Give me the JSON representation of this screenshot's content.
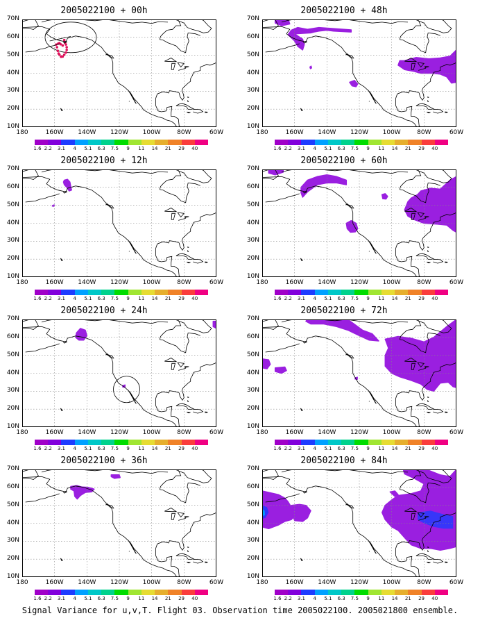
{
  "panels": [
    {
      "title": "2005022100 + 00h",
      "overlay": "obs00"
    },
    {
      "title": "2005022100 + 48h",
      "overlay": "p48"
    },
    {
      "title": "2005022100 + 12h",
      "overlay": "p12"
    },
    {
      "title": "2005022100 + 60h",
      "overlay": "p60"
    },
    {
      "title": "2005022100 + 24h",
      "overlay": "p24"
    },
    {
      "title": "2005022100 + 72h",
      "overlay": "p72"
    },
    {
      "title": "2005022100 + 36h",
      "overlay": "p36"
    },
    {
      "title": "2005022100 + 84h",
      "overlay": "p84"
    }
  ],
  "map": {
    "lat_labels": [
      "10N",
      "20N",
      "30N",
      "40N",
      "50N",
      "60N",
      "70N"
    ],
    "lon_labels": [
      "180",
      "160W",
      "140W",
      "120W",
      "100W",
      "80W",
      "60W"
    ]
  },
  "colorbar": {
    "labels": [
      "1.6",
      "2.2",
      "3.1",
      "4",
      "5.1",
      "6.3",
      "7.5",
      "9",
      "11",
      "14",
      "21",
      "29",
      "40"
    ],
    "colors": [
      "#a000c8",
      "#8200dc",
      "#1e3cff",
      "#00a0ff",
      "#00c8c8",
      "#00d28c",
      "#00dc00",
      "#a0e632",
      "#e6dc32",
      "#e6af2d",
      "#f08228",
      "#fa3c3c",
      "#f00082"
    ]
  },
  "fill_color": "#9a1fe0",
  "obs_color": "#e0105a",
  "caption": "Signal Variance for u,v,T. Flight 03. Observation time 2005022100. 2005021800 ensemble."
}
